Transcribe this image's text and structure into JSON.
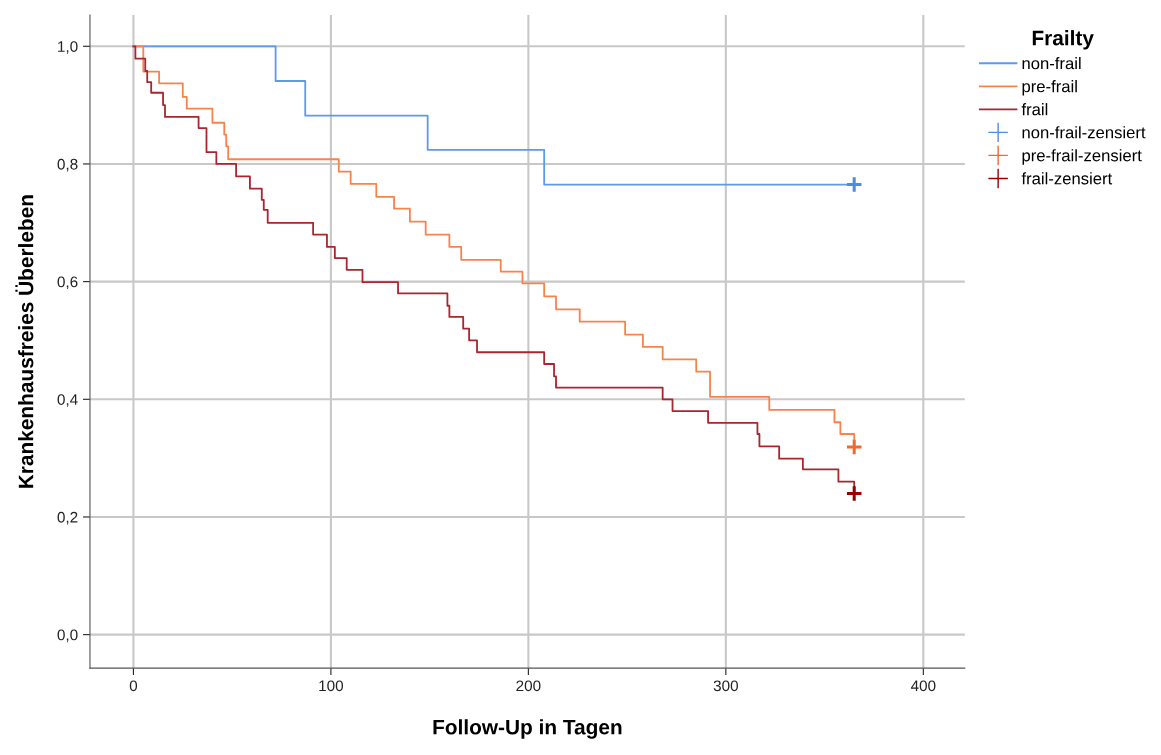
{
  "chart_data": {
    "type": "step",
    "xlabel": "Follow-Up in Tagen",
    "ylabel": "Krankenhausfreies Überleben",
    "legend_title": "Frailty",
    "legend": "right",
    "grid": true,
    "xlim": [
      -22,
      421
    ],
    "ylim": [
      -0.057,
      1.053
    ],
    "xticks": [
      0,
      100,
      200,
      300,
      400
    ],
    "yticks": [
      {
        "value": 0.0,
        "label": "0,0"
      },
      {
        "value": 0.2,
        "label": "0,2"
      },
      {
        "value": 0.4,
        "label": "0,4"
      },
      {
        "value": 0.6,
        "label": "0,6"
      },
      {
        "value": 0.8,
        "label": "0,8"
      },
      {
        "value": 1.0,
        "label": "1,0"
      }
    ],
    "series": [
      {
        "name": "non-frail",
        "color": "#5b9be8",
        "x": [
          0,
          72,
          87,
          149,
          208,
          365
        ],
        "values": [
          1.0,
          0.941,
          0.882,
          0.824,
          0.765,
          0.765
        ]
      },
      {
        "name": "pre-frail",
        "color": "#f5844c",
        "x": [
          0,
          5,
          13,
          25,
          27,
          40,
          46,
          47,
          48,
          104,
          110,
          123,
          132,
          140,
          148,
          160,
          166,
          186,
          197,
          208,
          214,
          226,
          249,
          258,
          268,
          285,
          292,
          322,
          355,
          358,
          365
        ],
        "values": [
          1.0,
          0.957,
          0.937,
          0.914,
          0.894,
          0.87,
          0.85,
          0.83,
          0.808,
          0.787,
          0.766,
          0.744,
          0.724,
          0.702,
          0.68,
          0.659,
          0.637,
          0.617,
          0.597,
          0.575,
          0.553,
          0.532,
          0.51,
          0.489,
          0.468,
          0.447,
          0.404,
          0.382,
          0.361,
          0.341,
          0.319
        ]
      },
      {
        "name": "frail",
        "color": "#a8262e",
        "x": [
          0,
          1,
          6,
          7,
          9,
          15,
          16,
          33,
          37,
          42,
          52,
          59,
          65,
          66,
          68,
          91,
          98,
          102,
          108,
          116,
          134,
          159,
          160,
          167,
          170,
          174,
          208,
          213,
          214,
          268,
          273,
          291,
          316,
          317,
          327,
          339,
          357,
          365
        ],
        "values": [
          1.0,
          0.979,
          0.958,
          0.939,
          0.921,
          0.9,
          0.88,
          0.861,
          0.82,
          0.8,
          0.779,
          0.758,
          0.739,
          0.722,
          0.7,
          0.68,
          0.659,
          0.64,
          0.62,
          0.599,
          0.58,
          0.559,
          0.54,
          0.52,
          0.5,
          0.48,
          0.46,
          0.439,
          0.42,
          0.4,
          0.38,
          0.36,
          0.341,
          0.32,
          0.299,
          0.281,
          0.26,
          0.24
        ]
      },
      {
        "name": "non-frail-zensiert",
        "type": "scatter",
        "marker": "cross",
        "color": "#4a8ee0",
        "x": [
          365
        ],
        "values": [
          0.765
        ]
      },
      {
        "name": "pre-frail-zensiert",
        "type": "scatter",
        "marker": "cross",
        "color": "#f26a2a",
        "x": [
          365
        ],
        "values": [
          0.319
        ]
      },
      {
        "name": "frail-zensiert",
        "type": "scatter",
        "marker": "cross",
        "color": "#990000",
        "x": [
          365
        ],
        "values": [
          0.24
        ]
      }
    ]
  }
}
